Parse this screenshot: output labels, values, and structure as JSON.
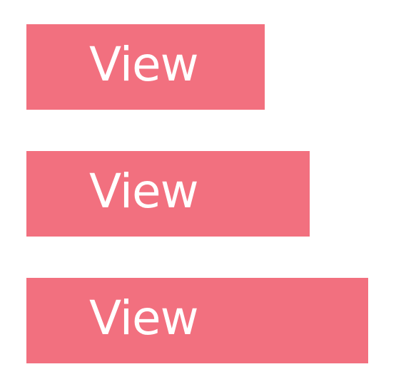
{
  "buttons": [
    {
      "label": "View"
    },
    {
      "label": "View"
    },
    {
      "label": "View"
    }
  ],
  "colors": {
    "button_background": "#f2707f",
    "button_text": "#ffffff",
    "page_background": "#ffffff"
  }
}
